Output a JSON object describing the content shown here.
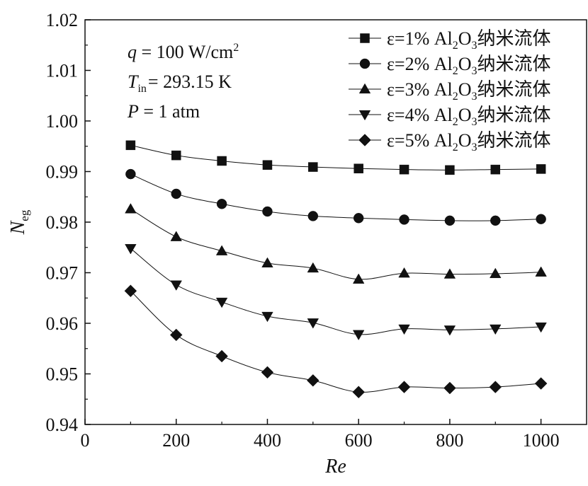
{
  "chart_data": {
    "type": "line",
    "title": "",
    "xlabel": "Re",
    "ylabel_main": "N",
    "ylabel_sub": "eg",
    "xlim": [
      0,
      1100
    ],
    "ylim": [
      0.94,
      1.02
    ],
    "x_ticks": [
      0,
      200,
      400,
      600,
      800,
      1000
    ],
    "x_tick_labels": [
      "0",
      "200",
      "400",
      "600",
      "800",
      "1000"
    ],
    "y_ticks": [
      0.94,
      0.95,
      0.96,
      0.97,
      0.98,
      0.99,
      1.0,
      1.01,
      1.02
    ],
    "y_tick_labels": [
      "0.94",
      "0.95",
      "0.96",
      "0.97",
      "0.98",
      "0.99",
      "1.00",
      "1.01",
      "1.02"
    ],
    "grid": false,
    "legend_position": "top-right",
    "x": [
      100,
      200,
      300,
      400,
      500,
      600,
      700,
      800,
      900,
      1000
    ],
    "series": [
      {
        "name_prefix": "ε=1% Al",
        "sub1": "2",
        "mid": "O",
        "sub2": "3",
        "suffix": "纳米流体",
        "marker": "square",
        "values": [
          0.9952,
          0.9932,
          0.9921,
          0.9913,
          0.9909,
          0.9906,
          0.9904,
          0.9903,
          0.9904,
          0.9905
        ]
      },
      {
        "name_prefix": "ε=2% Al",
        "sub1": "2",
        "mid": "O",
        "sub2": "3",
        "suffix": "纳米流体",
        "marker": "circle",
        "values": [
          0.9895,
          0.9856,
          0.9836,
          0.9821,
          0.9812,
          0.9808,
          0.9805,
          0.9803,
          0.9803,
          0.9806
        ]
      },
      {
        "name_prefix": "ε=3% Al",
        "sub1": "2",
        "mid": "O",
        "sub2": "3",
        "suffix": "纳米流体",
        "marker": "triangle-up",
        "values": [
          0.9826,
          0.9771,
          0.9743,
          0.9719,
          0.9709,
          0.9687,
          0.9699,
          0.9697,
          0.9698,
          0.9701
        ]
      },
      {
        "name_prefix": "ε=4% Al",
        "sub1": "2",
        "mid": "O",
        "sub2": "3",
        "suffix": "纳米流体",
        "marker": "triangle-down",
        "values": [
          0.9748,
          0.9676,
          0.9642,
          0.9614,
          0.9601,
          0.9578,
          0.9589,
          0.9587,
          0.9589,
          0.9593
        ]
      },
      {
        "name_prefix": "ε=5% Al",
        "sub1": "2",
        "mid": "O",
        "sub2": "3",
        "suffix": "纳米流体",
        "marker": "diamond",
        "values": [
          0.9664,
          0.9577,
          0.9535,
          0.9503,
          0.9487,
          0.9464,
          0.9474,
          0.9472,
          0.9474,
          0.9481
        ]
      }
    ],
    "annotations": {
      "q": {
        "var": "q",
        "text": " = 100 W/cm",
        "sup": "2"
      },
      "tin": {
        "var": "T",
        "sub": "in",
        "text": "= 293.15 K"
      },
      "p": {
        "var": "P",
        "text": " = 1 atm"
      }
    }
  }
}
